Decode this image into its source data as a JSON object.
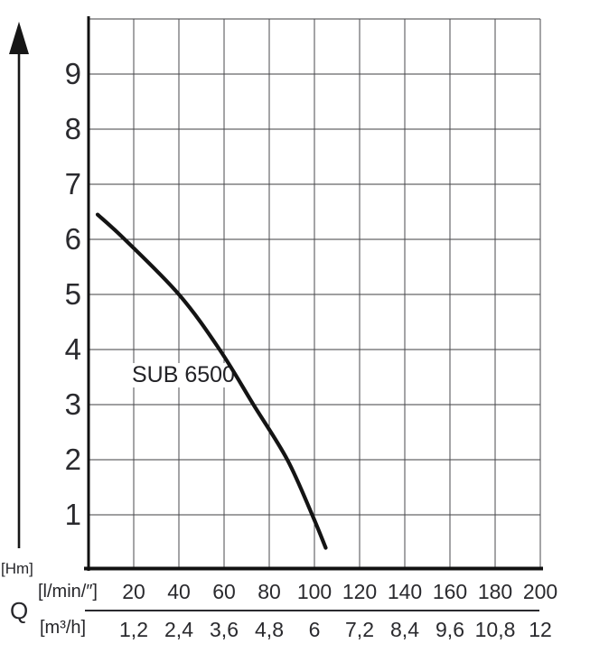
{
  "figure": {
    "series_label": "SUB 6500",
    "y_unit_label": "[Hm]",
    "x_axis_letter": "Q",
    "x_row1_unit": "[l/min/″]",
    "x_row2_unit": "[m³/h]"
  },
  "chart_data": {
    "type": "line",
    "title": "",
    "legend": "none",
    "grid": "on",
    "series": [
      {
        "name": "SUB 6500",
        "x_l_min": [
          4,
          16,
          40,
          58,
          73,
          88,
          99,
          105
        ],
        "y_H_m": [
          6.45,
          6.0,
          5.0,
          4.0,
          3.0,
          2.0,
          1.0,
          0.4
        ]
      }
    ],
    "x_axis": {
      "quantity": "Q",
      "row1_unit": "[l/min/″]",
      "row1_ticks": [
        "20",
        "40",
        "60",
        "80",
        "100",
        "120",
        "140",
        "160",
        "180",
        "200"
      ],
      "row1_tick_values_l_min": [
        20,
        40,
        60,
        80,
        100,
        120,
        140,
        160,
        180,
        200
      ],
      "row2_unit": "[m³/h]",
      "row2_ticks": [
        "1,2",
        "2,4",
        "3,6",
        "4,8",
        "6",
        "7,2",
        "8,4",
        "9,6",
        "10,8",
        "12"
      ],
      "xlim_l_min": [
        0,
        200
      ],
      "grid_step_l_min": 20
    },
    "y_axis": {
      "quantity_unit": "[Hm]",
      "ticks": [
        "1",
        "2",
        "3",
        "4",
        "5",
        "6",
        "7",
        "8",
        "9"
      ],
      "tick_values_m": [
        1,
        2,
        3,
        4,
        5,
        6,
        7,
        8,
        9
      ],
      "ylim_m": [
        0,
        10
      ],
      "grid_step_m": 1
    }
  }
}
